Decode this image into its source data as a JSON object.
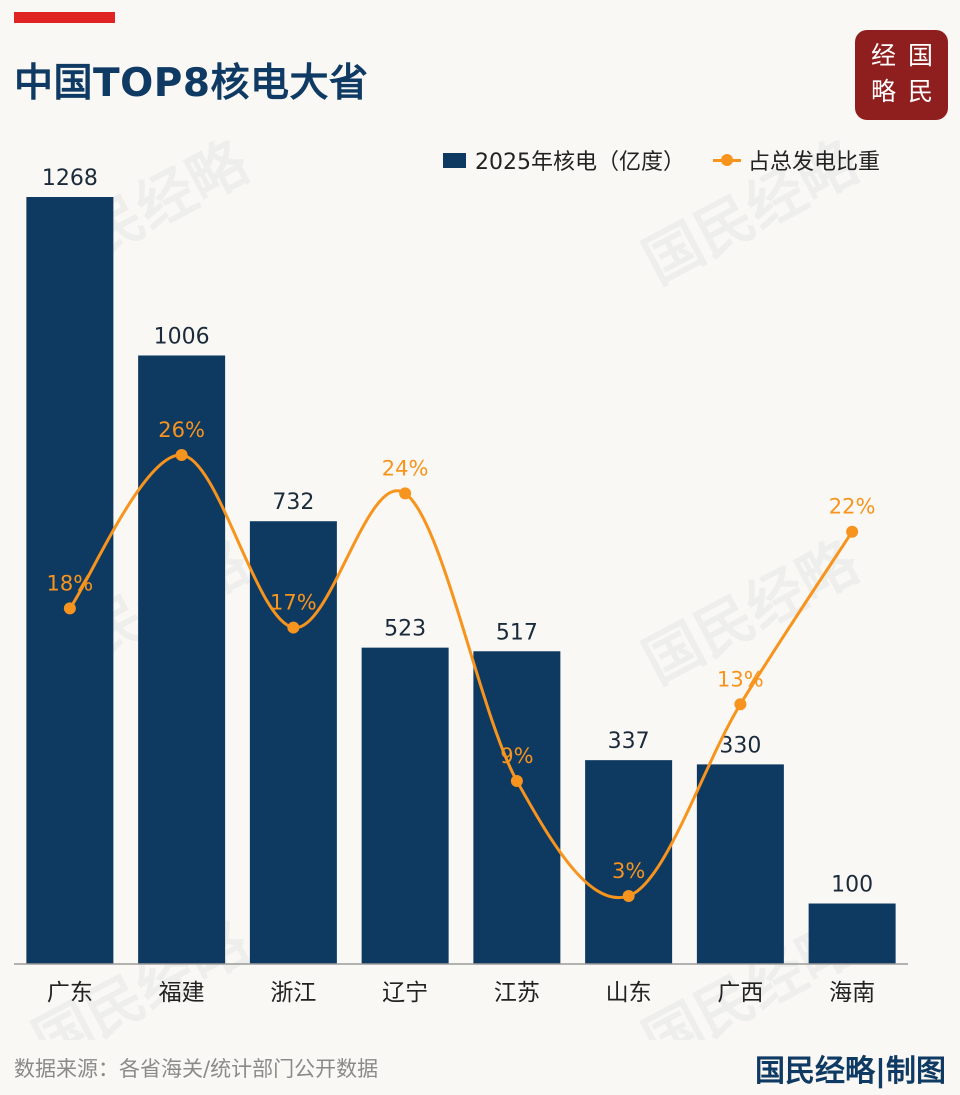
{
  "title": "中国TOP8核电大省",
  "seal": {
    "chars": [
      "经",
      "国",
      "略",
      "民"
    ]
  },
  "watermark": "国民经略",
  "legend": {
    "bar": "2025年核电（亿度）",
    "line": "占总发电比重"
  },
  "colors": {
    "bar": "#0e3a62",
    "line": "#f7941d",
    "accent": "#e02424",
    "title": "#0f3a63",
    "seal": "#8f1f1f"
  },
  "chart_data": {
    "type": "bar",
    "categories": [
      "广东",
      "福建",
      "浙江",
      "辽宁",
      "江苏",
      "山东",
      "广西",
      "海南"
    ],
    "series": [
      {
        "name": "2025年核电（亿度）",
        "type": "bar",
        "values": [
          1268,
          1006,
          732,
          523,
          517,
          337,
          330,
          100
        ],
        "labels": [
          "1268",
          "1006",
          "732",
          "523",
          "517",
          "337",
          "330",
          "100"
        ]
      },
      {
        "name": "占总发电比重",
        "type": "line",
        "values": [
          18,
          26,
          17,
          24,
          9,
          3,
          13,
          22
        ],
        "labels": [
          "18%",
          "26%",
          "17%",
          "24%",
          "9%",
          "3%",
          "13%",
          "22%"
        ]
      }
    ],
    "ylim": [
      0,
      1268
    ]
  },
  "footer": {
    "source": "数据来源：各省海关/统计部门公开数据",
    "credit": "国民经略|制图"
  }
}
